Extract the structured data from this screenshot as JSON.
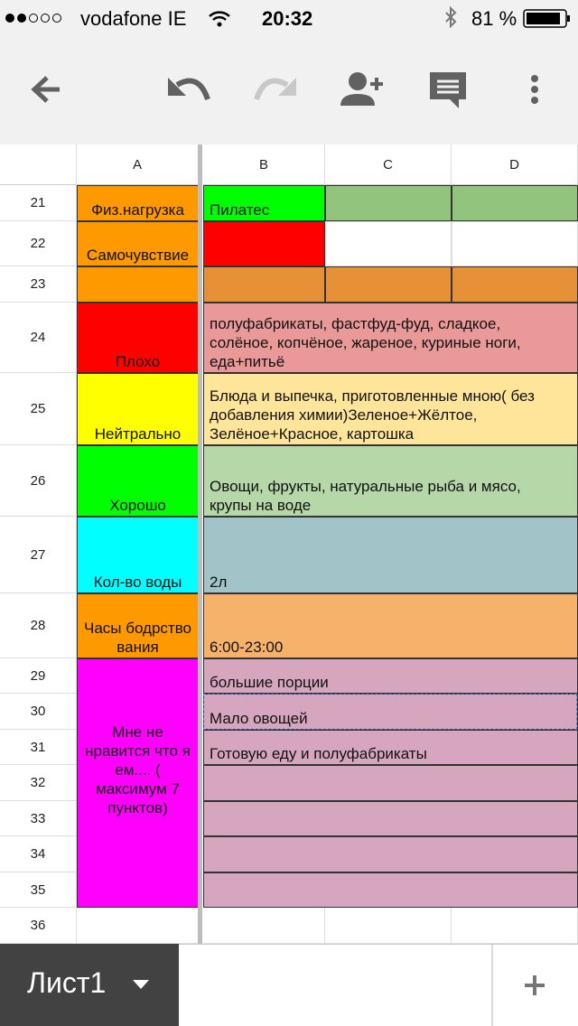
{
  "status_bar": {
    "carrier": "vodafone IE",
    "time": "20:32",
    "battery": "81 %"
  },
  "columns": [
    "A",
    "B",
    "C",
    "D"
  ],
  "rows": [
    {
      "number": 21,
      "label": "Физ.нагрузка",
      "value": "Пилатес"
    },
    {
      "number": 22,
      "label": "Самочувствие"
    },
    {
      "number": 23
    },
    {
      "number": 24,
      "label": "Плохо",
      "value": "полуфабрикаты, фастфуд-фуд, сладкое, солёное, копчёное, жареное, куриные ноги, еда+питьё"
    },
    {
      "number": 25,
      "label": "Нейтрально",
      "value": "Блюда и выпечка, приготовленные мною( без добавления химии)Зеленое+Жёлтое, Зелёное+Красное, картошка"
    },
    {
      "number": 26,
      "label": "Хорошо",
      "value": "Овощи, фрукты, натуральные рыба и мясо, крупы на воде"
    },
    {
      "number": 27,
      "label": "Кол-во воды",
      "value": "2л"
    },
    {
      "number": 28,
      "label": "Часы бодрствования",
      "value": "6:00-23:00"
    },
    {
      "number": 29,
      "value": "большие порции"
    },
    {
      "number": 30,
      "value": "Мало овощей"
    },
    {
      "number": 31,
      "value": "Готовую еду и полуфабрикаты"
    },
    {
      "number": 32
    },
    {
      "number": 33
    },
    {
      "number": 34
    },
    {
      "number": 35
    },
    {
      "number": 36
    }
  ],
  "merged_label": "Мне не нравится что я ем.... ( максимум 7 пунктов)",
  "sheet_tab": "Лист1"
}
